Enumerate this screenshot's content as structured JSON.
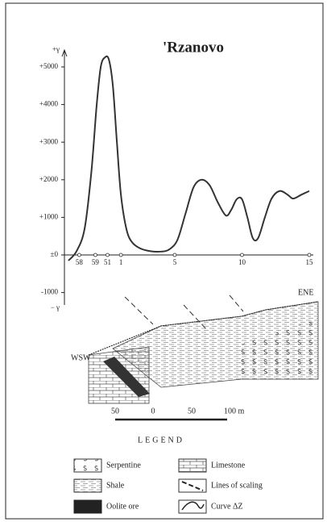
{
  "chart_data": {
    "type": "line",
    "title": "'Rzanovo",
    "ylabel_top": "+γ",
    "ylabel_bottom": "− γ",
    "color": "#333333",
    "xlim": [
      -3.2,
      15.3
    ],
    "ylim": [
      -1330,
      5450
    ],
    "xticks": [
      {
        "value": -2.1,
        "label": "58"
      },
      {
        "value": -0.9,
        "label": "59"
      },
      {
        "value": 0,
        "label": "51"
      },
      1,
      5,
      10,
      15
    ],
    "yticks": [
      {
        "value": 5000,
        "label": "+5000"
      },
      {
        "value": 4000,
        "label": "+4000"
      },
      {
        "value": 3000,
        "label": "+3000"
      },
      {
        "value": 2000,
        "label": "+2000"
      },
      {
        "value": 1000,
        "label": "+1000"
      },
      {
        "value": 0,
        "label": "±0"
      },
      -1000
    ],
    "x": [
      -2.9,
      -2.3,
      -1.7,
      -1.2,
      -0.8,
      -0.5,
      -0.2,
      0.1,
      0.4,
      0.7,
      1.0,
      1.4,
      1.8,
      2.4,
      3.2,
      4.0,
      4.6,
      5.2,
      5.8,
      6.4,
      7.0,
      7.6,
      8.2,
      8.8,
      9.2,
      9.6,
      10.0,
      10.4,
      10.8,
      11.2,
      11.7,
      12.2,
      12.8,
      13.4,
      13.8,
      14.4,
      15.0
    ],
    "values": [
      -150,
      100,
      700,
      2200,
      4000,
      5000,
      5250,
      5200,
      4500,
      3000,
      1600,
      700,
      350,
      180,
      100,
      90,
      150,
      400,
      1100,
      1800,
      2000,
      1850,
      1400,
      1050,
      1200,
      1480,
      1480,
      1000,
      450,
      450,
      1000,
      1500,
      1700,
      1600,
      1500,
      1600,
      1700
    ]
  },
  "section": {
    "west": "WSW",
    "east": "ENE",
    "scale": [
      "50",
      "0",
      "50",
      "100 m"
    ]
  },
  "legend": {
    "title": "LEGEND",
    "items": [
      "Serpentine",
      "Limestone",
      "Shale",
      "Lines of scaling",
      "Oolite ore",
      "Curve ΔZ"
    ]
  }
}
